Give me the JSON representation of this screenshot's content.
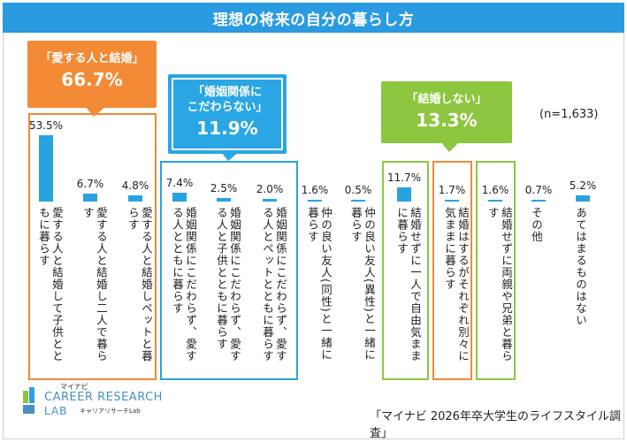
{
  "title": "理想の将来の自分の暮らし方",
  "n_label": "(n=1,633)",
  "source": "「マイナビ 2026年卒大学生のライフスタイル調査」",
  "logo": {
    "top": "マイナビ",
    "line1": "CAREER RESEARCH",
    "line2": "LAB",
    "sub": "キャリアリサーチLab"
  },
  "callouts": {
    "married": {
      "caption": "「愛する人と結婚」",
      "percent": "66.7%"
    },
    "no_matter": {
      "caption_line1": "「婚姻関係に",
      "caption_line2": "こだわらない」",
      "percent": "11.9%"
    },
    "no_marriage": {
      "caption": "「結婚しない」",
      "percent": "13.3%"
    }
  },
  "chart_data": {
    "type": "bar",
    "title": "理想の将来の自分の暮らし方",
    "ylabel": "%",
    "ylim": [
      0,
      53.5
    ],
    "categories": [
      "愛する人と結婚して子供とともに暮らす",
      "愛する人と結婚し二人で暮らす",
      "愛する人と結婚しペットと暮らす",
      "婚姻関係にこだわらず、愛する人とともに暮らす",
      "婚姻関係にこだわらず、愛する人と子供とともに暮らす",
      "婚姻関係にこだわらず、愛する人とペットとともに暮らす",
      "仲の良い友人(同性)と一緒に暮らす",
      "仲の良い友人(異性)と一緒に暮らす",
      "結婚せずに一人で自由気ままに暮らす",
      "結婚はするがそれぞれ別々に気ままに暮らす",
      "結婚せずに両親や兄弟と暮らす",
      "その他",
      "あてはまるものはない"
    ],
    "value_labels": [
      "53.5%",
      "6.7%",
      "4.8%",
      "7.4%",
      "2.5%",
      "2.0%",
      "1.6%",
      "0.5%",
      "11.7%",
      "1.7%",
      "1.6%",
      "0.7%",
      "5.2%"
    ],
    "values": [
      53.5,
      6.7,
      4.8,
      7.4,
      2.5,
      2.0,
      1.6,
      0.5,
      11.7,
      1.7,
      1.6,
      0.7,
      5.2
    ],
    "groups": [
      {
        "name": "愛する人と結婚",
        "percent": 66.7,
        "members": [
          0,
          1,
          2
        ],
        "color": "#f08a3a"
      },
      {
        "name": "婚姻関係にこだわらない",
        "percent": 11.9,
        "members": [
          3,
          4,
          5
        ],
        "color": "#29a3e0"
      },
      {
        "name": "結婚しない",
        "percent": 13.3,
        "members": [
          8,
          10
        ],
        "color": "#8cc63f"
      },
      {
        "name": "結婚はするがそれぞれ別々",
        "members": [
          9
        ],
        "color": "#f08a3a"
      }
    ],
    "bar_color": "#29a3e0"
  }
}
